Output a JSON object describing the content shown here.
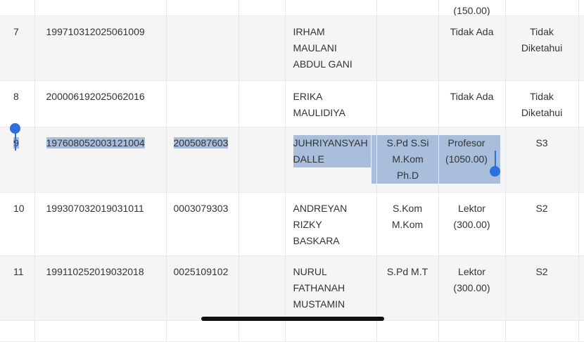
{
  "partial_top_row": {
    "jabatan": "(150.00)"
  },
  "rows": [
    {
      "no": "7",
      "nip": "199710312025061009",
      "nidn": "",
      "extra": "",
      "name": [
        "IRHAM",
        "MAULANI",
        "ABDUL GANI"
      ],
      "gelar": [],
      "jabatan": [
        "Tidak Ada"
      ],
      "pendidikan": [
        "Tidak",
        "Diketahui"
      ]
    },
    {
      "no": "8",
      "nip": "200006192025062016",
      "nidn": "",
      "extra": "",
      "name": [
        "ERIKA",
        "MAULIDIYA"
      ],
      "gelar": [],
      "jabatan": [
        "Tidak Ada"
      ],
      "pendidikan": [
        "Tidak",
        "Diketahui"
      ]
    },
    {
      "no": "9",
      "nip": "197608052003121004",
      "nidn": "2005087603",
      "extra": "",
      "name": [
        "JUHRIYANSYAH",
        "DALLE"
      ],
      "gelar": [
        "S.Pd S.Si",
        "M.Kom",
        "Ph.D"
      ],
      "jabatan": [
        "Profesor",
        "(1050.00)"
      ],
      "pendidikan": [
        "S3"
      ],
      "selected": true
    },
    {
      "no": "10",
      "nip": "199307032019031011",
      "nidn": "0003079303",
      "extra": "",
      "name": [
        "ANDREYAN",
        "RIZKY",
        "BASKARA"
      ],
      "gelar": [
        "S.Kom",
        "M.Kom"
      ],
      "jabatan": [
        "Lektor",
        "(300.00)"
      ],
      "pendidikan": [
        "S2"
      ]
    },
    {
      "no": "11",
      "nip": "199110252019032018",
      "nidn": "0025109102",
      "extra": "",
      "name": [
        "NURUL",
        "FATHANAH",
        "MUSTAMIN"
      ],
      "gelar": [
        "S.Pd M.T"
      ],
      "jabatan": [
        "Lektor",
        "(300.00)"
      ],
      "pendidikan": [
        "S2"
      ]
    }
  ],
  "colors": {
    "stripe": "#f5f5f5",
    "selection": "#a8bedb",
    "handle": "#2f6fdc"
  }
}
